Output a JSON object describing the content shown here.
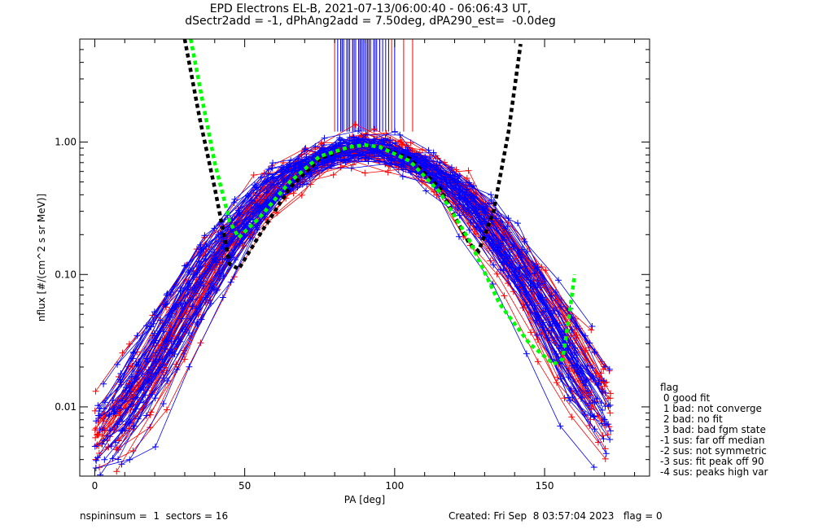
{
  "title_line1": "EPD Electrons EL-B, 2021-07-13/06:00:40 - 06:06:43 UT,",
  "title_line2": "dSectr2add = -1, dPhAng2add = 7.50deg, dPA290_est=  -0.0deg",
  "footer_left": "nspininsum =  1  sectors = 16",
  "footer_right": "Created: Fri Sep  8 03:57:04 2023   flag = 0",
  "legend": {
    "title": "flag",
    "entries": [
      " 0 good fit",
      " 1 bad: not converge",
      " 2 bad: no fit",
      " 3 bad: bad fgm state",
      "-1 sus: far off median",
      "-2 sus: not symmetric",
      "-3 sus: fit peak off 90",
      "-4 sus: peaks high var"
    ]
  },
  "colors": {
    "series_red": "#ff0000",
    "series_blue": "#0000ff",
    "fit_black": "#000000",
    "fit_green": "#00ff00",
    "axes": "#000000"
  },
  "chart_data": {
    "type": "line",
    "xlabel": "PA [deg]",
    "ylabel": "nflux [#/(cm^2 s sr MeV)]",
    "xlim": [
      -5,
      185
    ],
    "ylim": [
      0.003,
      6.0
    ],
    "y_scale": "log",
    "x_ticks": [
      0,
      50,
      100,
      150
    ],
    "y_ticks": [
      {
        "value": 0.01,
        "label": "0.01"
      },
      {
        "value": 0.1,
        "label": "0.10"
      },
      {
        "value": 1.0,
        "label": "1.00"
      }
    ],
    "grid": false,
    "series": [
      {
        "color": "red",
        "style": "line+cross",
        "approx_peak_pa": 90,
        "approx_peak_flux": 0.9,
        "approx_width": 25
      },
      {
        "color": "blue",
        "style": "line+cross",
        "approx_peak_pa": 90,
        "approx_peak_flux": 0.9,
        "approx_width": 25
      }
    ],
    "fits": [
      {
        "color": "black",
        "style": "dashed",
        "points": [
          [
            30,
            6.0
          ],
          [
            35,
            1.5
          ],
          [
            40,
            0.45
          ],
          [
            45,
            0.12
          ],
          [
            48,
            0.11
          ],
          [
            55,
            0.2
          ],
          [
            65,
            0.45
          ],
          [
            75,
            0.75
          ],
          [
            85,
            0.92
          ],
          [
            90,
            0.95
          ],
          [
            95,
            0.92
          ],
          [
            105,
            0.75
          ],
          [
            115,
            0.45
          ],
          [
            125,
            0.17
          ],
          [
            128,
            0.15
          ],
          [
            133,
            0.3
          ],
          [
            138,
            1.2
          ],
          [
            142,
            5.5
          ]
        ]
      },
      {
        "color": "green",
        "style": "dashed",
        "points": [
          [
            32,
            6.0
          ],
          [
            36,
            2.0
          ],
          [
            40,
            0.7
          ],
          [
            45,
            0.25
          ],
          [
            48,
            0.19
          ],
          [
            55,
            0.27
          ],
          [
            65,
            0.5
          ],
          [
            75,
            0.78
          ],
          [
            85,
            0.92
          ],
          [
            90,
            0.95
          ],
          [
            95,
            0.92
          ],
          [
            105,
            0.72
          ],
          [
            115,
            0.42
          ],
          [
            125,
            0.18
          ],
          [
            135,
            0.06
          ],
          [
            145,
            0.03
          ],
          [
            153,
            0.021
          ],
          [
            156,
            0.023
          ],
          [
            158,
            0.045
          ],
          [
            160,
            0.1
          ]
        ]
      }
    ],
    "vertical_markers": {
      "from_flux": 1.2,
      "to_flux": 6.0,
      "red_pa": [
        80,
        82,
        86,
        88,
        91,
        93,
        95,
        99,
        103,
        106
      ],
      "blue_pa": [
        81,
        82,
        82.5,
        83,
        84,
        84.5,
        85,
        86,
        86.5,
        87,
        88,
        88.5,
        89,
        89.5,
        90,
        90.5,
        91,
        91.5,
        92,
        93,
        93.5,
        94,
        95,
        96,
        97,
        98,
        100
      ]
    }
  }
}
